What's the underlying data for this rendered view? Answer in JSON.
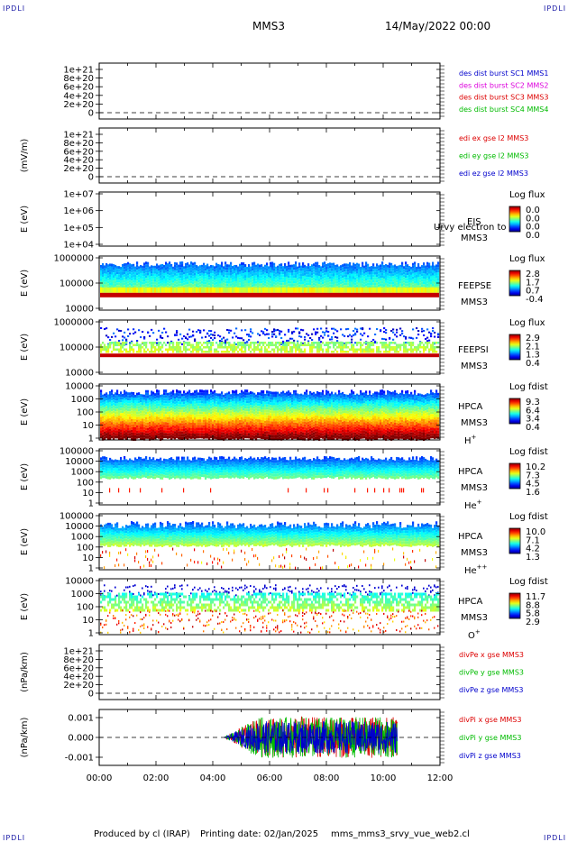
{
  "header": {
    "corner_tl": "IPDLI",
    "corner_tr": "IPDLI",
    "corner_bl": "IPDLI",
    "corner_br": "IPDLI",
    "mission": "MMS3",
    "date": "14/May/2022 00:00"
  },
  "footer": {
    "producer": "Produced by cl (IRAP)",
    "printing": "Printing date: 02/Jan/2025",
    "file": "mms_mms3_srvy_vue_web2.cl"
  },
  "colors": {
    "black": "#000000",
    "blue": "#0000cc",
    "magenta": "#dd00dd",
    "red": "#dd0000",
    "green": "#00bb00",
    "dark_red": "#aa0000"
  },
  "chart_data": {
    "x_ticks": [
      "00:00",
      "02:00",
      "04:00",
      "06:00",
      "08:00",
      "10:00",
      "12:00"
    ],
    "x_range_hours": [
      0,
      12
    ],
    "panels": [
      {
        "id": "p1",
        "type": "line",
        "ylabel": "",
        "yticks": [
          "1e+21",
          "8e+20",
          "6e+20",
          "4e+20",
          "2e+20",
          "0"
        ],
        "series": [
          {
            "name": "des dist burst SC1 MMS1",
            "color": "#0000cc"
          },
          {
            "name": "des dist burst SC2 MMS2",
            "color": "#dd00dd"
          },
          {
            "name": "des dist burst SC3 MMS3",
            "color": "#dd0000"
          },
          {
            "name": "des dist burst SC4 MMS4",
            "color": "#00bb00"
          }
        ]
      },
      {
        "id": "p2",
        "type": "line",
        "ylabel": "(mV/m)",
        "yticks": [
          "1e+21",
          "8e+20",
          "6e+20",
          "4e+20",
          "2e+20",
          "0"
        ],
        "series": [
          {
            "name": "edi ex gse l2 MMS3",
            "color": "#dd0000"
          },
          {
            "name": "edi ey gse l2 MMS3",
            "color": "#00bb00"
          },
          {
            "name": "edi ez gse l2 MMS3",
            "color": "#0000cc"
          }
        ]
      },
      {
        "id": "p3",
        "type": "heatmap",
        "ylabel": "E (eV)",
        "yticks": [
          "1e+07",
          "1e+06",
          "1e+05",
          "1e+04"
        ],
        "labels": [
          "EIS",
          "MMS3"
        ],
        "overlay": "Urvy electron to",
        "cbar_title": "Log flux",
        "cbar_ticks": [
          "0.0",
          "0.0",
          "0.0",
          "0.0"
        ]
      },
      {
        "id": "p4",
        "type": "heatmap",
        "ylabel": "E (eV)",
        "yticks": [
          "1000000",
          "100000",
          "10000"
        ],
        "labels": [
          "FEEPSE",
          "MMS3"
        ],
        "cbar_title": "Log flux",
        "cbar_ticks": [
          "2.8",
          "1.7",
          "0.7",
          "-0.4"
        ]
      },
      {
        "id": "p5",
        "type": "heatmap",
        "ylabel": "E (eV)",
        "yticks": [
          "1000000",
          "100000",
          "10000"
        ],
        "labels": [
          "FEEPSI",
          "MMS3"
        ],
        "cbar_title": "Log flux",
        "cbar_ticks": [
          "2.9",
          "2.1",
          "1.3",
          "0.4"
        ]
      },
      {
        "id": "p6",
        "type": "heatmap",
        "ylabel": "E (eV)",
        "yticks": [
          "10000",
          "1000",
          "100",
          "10",
          "1"
        ],
        "labels": [
          "HPCA",
          "MMS3"
        ],
        "species": "H",
        "charge": "+",
        "cbar_title": "Log fdist",
        "cbar_ticks": [
          "9.3",
          "6.4",
          "3.4",
          "0.4"
        ]
      },
      {
        "id": "p7",
        "type": "heatmap",
        "ylabel": "E (eV)",
        "yticks": [
          "100000",
          "10000",
          "1000",
          "100",
          "10",
          "1"
        ],
        "labels": [
          "HPCA",
          "MMS3"
        ],
        "species": "He",
        "charge": "+",
        "cbar_title": "Log fdist",
        "cbar_ticks": [
          "10.2",
          "7.3",
          "4.5",
          "1.6"
        ]
      },
      {
        "id": "p8",
        "type": "heatmap",
        "ylabel": "E (eV)",
        "yticks": [
          "100000",
          "10000",
          "1000",
          "100",
          "10",
          "1"
        ],
        "labels": [
          "HPCA",
          "MMS3"
        ],
        "species": "He",
        "charge": "++",
        "cbar_title": "Log fdist",
        "cbar_ticks": [
          "10.0",
          "7.1",
          "4.2",
          "1.3"
        ]
      },
      {
        "id": "p9",
        "type": "heatmap",
        "ylabel": "E (eV)",
        "yticks": [
          "10000",
          "1000",
          "100",
          "10",
          "1"
        ],
        "labels": [
          "HPCA",
          "MMS3"
        ],
        "species": "O",
        "charge": "+",
        "cbar_title": "Log fdist",
        "cbar_ticks": [
          "11.7",
          "8.8",
          "5.8",
          "2.9"
        ]
      },
      {
        "id": "p10",
        "type": "line",
        "ylabel": "(nPa/km)",
        "yticks": [
          "1e+21",
          "8e+20",
          "6e+20",
          "4e+20",
          "2e+20",
          "0"
        ],
        "series": [
          {
            "name": "divPe x gse MMS3",
            "color": "#dd0000"
          },
          {
            "name": "divPe y gse MMS3",
            "color": "#00bb00"
          },
          {
            "name": "divPe z gse MMS3",
            "color": "#0000cc"
          }
        ]
      },
      {
        "id": "p11",
        "type": "line",
        "ylabel": "(nPa/km)",
        "yticks": [
          "0.001",
          "0.000",
          "-0.001"
        ],
        "ylim": [
          -0.0013,
          0.0013
        ],
        "data_span_hours": [
          4.4,
          10.5
        ],
        "series": [
          {
            "name": "divPi x gse MMS3",
            "color": "#dd0000"
          },
          {
            "name": "divPi y gse MMS3",
            "color": "#00bb00"
          },
          {
            "name": "divPi z gse MMS3",
            "color": "#0000cc"
          }
        ]
      }
    ]
  }
}
